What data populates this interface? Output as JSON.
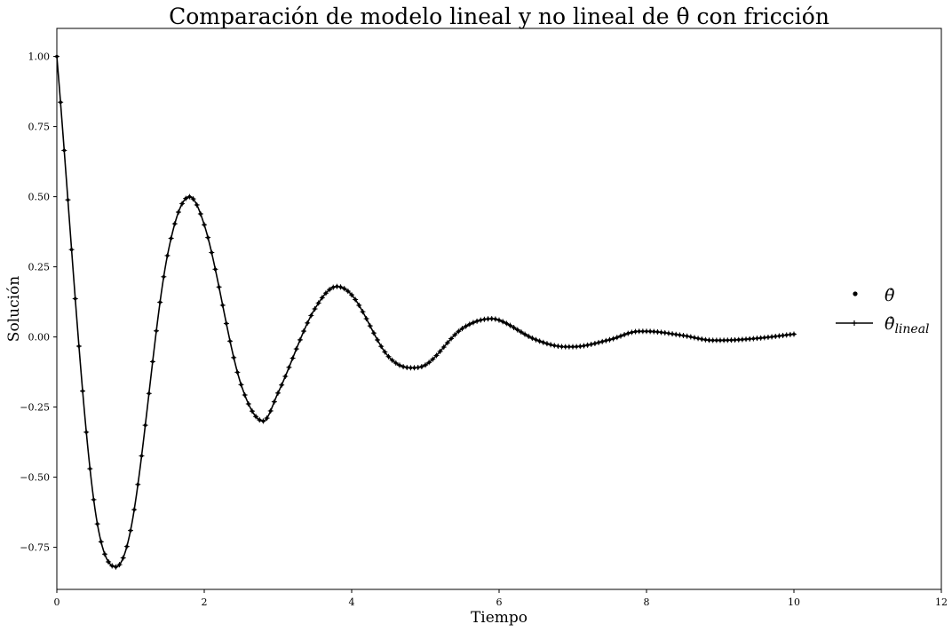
{
  "chart_data": {
    "type": "line",
    "title": "Comparación de modelo lineal y no lineal de θ̇ con fricción",
    "xlabel": "Tiempo",
    "ylabel": "Solución",
    "xlim": [
      0,
      12
    ],
    "ylim": [
      -0.9,
      1.1
    ],
    "x_ticks": [
      0,
      2,
      4,
      6,
      8,
      10,
      12
    ],
    "y_ticks": [
      -0.75,
      -0.5,
      -0.25,
      0.0,
      0.25,
      0.5,
      0.75,
      1.0
    ],
    "grid": false,
    "legend_position": "right",
    "x": [
      0,
      0.5,
      0.8,
      1.0,
      1.5,
      1.8,
      2.0,
      2.5,
      2.8,
      3.0,
      3.5,
      3.8,
      4.0,
      4.5,
      4.8,
      5.0,
      5.5,
      5.9,
      6.0,
      6.5,
      6.9,
      7.0,
      7.5,
      7.9,
      8.0,
      8.5,
      8.9,
      9.0,
      9.5,
      10.0
    ],
    "series": [
      {
        "name": "θ̇",
        "marker": "dot",
        "values": [
          1.0,
          -0.58,
          -0.82,
          -0.69,
          0.29,
          0.5,
          0.4,
          -0.17,
          -0.3,
          -0.2,
          0.1,
          0.18,
          0.15,
          -0.07,
          -0.11,
          -0.1,
          0.03,
          0.065,
          0.06,
          -0.01,
          -0.035,
          -0.035,
          -0.01,
          0.02,
          0.02,
          0.005,
          -0.012,
          -0.012,
          -0.005,
          0.01
        ]
      },
      {
        "name": "θ̇lineal",
        "marker": "plus-line",
        "values": [
          1.0,
          -0.58,
          -0.82,
          -0.69,
          0.29,
          0.5,
          0.4,
          -0.17,
          -0.3,
          -0.2,
          0.1,
          0.18,
          0.15,
          -0.07,
          -0.11,
          -0.1,
          0.03,
          0.065,
          0.06,
          -0.01,
          -0.035,
          -0.035,
          -0.01,
          0.02,
          0.02,
          0.005,
          -0.012,
          -0.012,
          -0.005,
          0.01
        ]
      }
    ]
  },
  "legend": {
    "item1": {
      "base": "θ̇",
      "sub": ""
    },
    "item2": {
      "base": "θ̇",
      "sub": "lineal"
    }
  }
}
